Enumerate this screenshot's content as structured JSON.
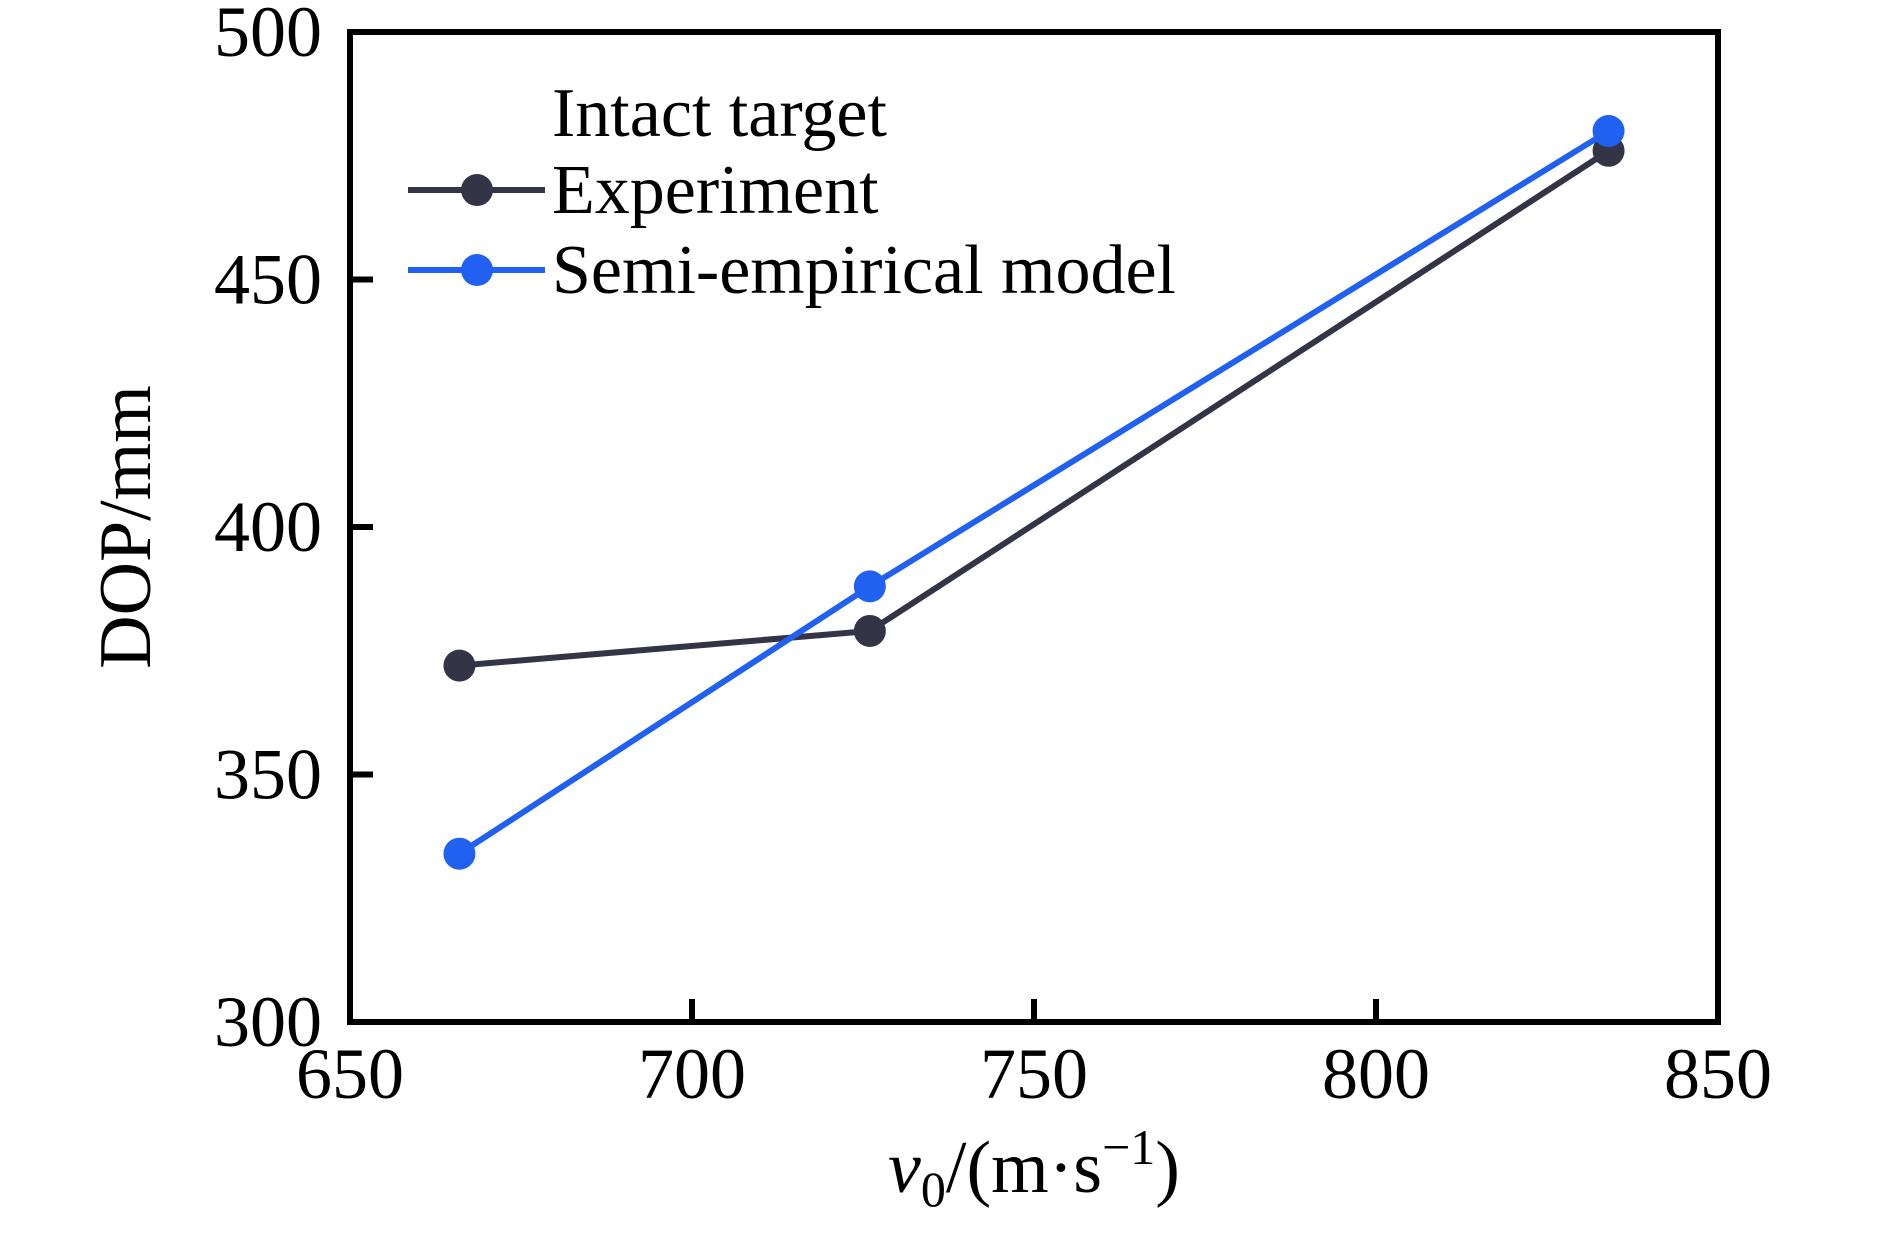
{
  "chart_data": {
    "type": "line",
    "title": "",
    "ylabel": "DOP/mm",
    "xlabel_plain": "v0/(m·s−1)",
    "xlabel_parts": {
      "variable": "v",
      "subscript": "0",
      "mid": "/(m·s",
      "superscript": "−1",
      "end": ")"
    },
    "xlim": [
      650,
      850
    ],
    "ylim": [
      300,
      500
    ],
    "xticks": [
      650,
      700,
      750,
      800,
      850
    ],
    "yticks": [
      300,
      350,
      400,
      450,
      500
    ],
    "grid": false,
    "legend_position": "upper-left",
    "legend_header": "Intact target",
    "axis_color": "#000000",
    "text_color": "#000000",
    "background": "#ffffff",
    "series": [
      {
        "name": "Experiment",
        "color": "#343447",
        "marker": "circle",
        "points": [
          {
            "x": 666,
            "y": 372
          },
          {
            "x": 726,
            "y": 379
          },
          {
            "x": 834,
            "y": 476
          }
        ]
      },
      {
        "name": "Semi-empirical model",
        "color": "#2161f2",
        "marker": "circle",
        "points": [
          {
            "x": 666,
            "y": 334
          },
          {
            "x": 726,
            "y": 388
          },
          {
            "x": 834,
            "y": 480
          }
        ]
      }
    ]
  }
}
